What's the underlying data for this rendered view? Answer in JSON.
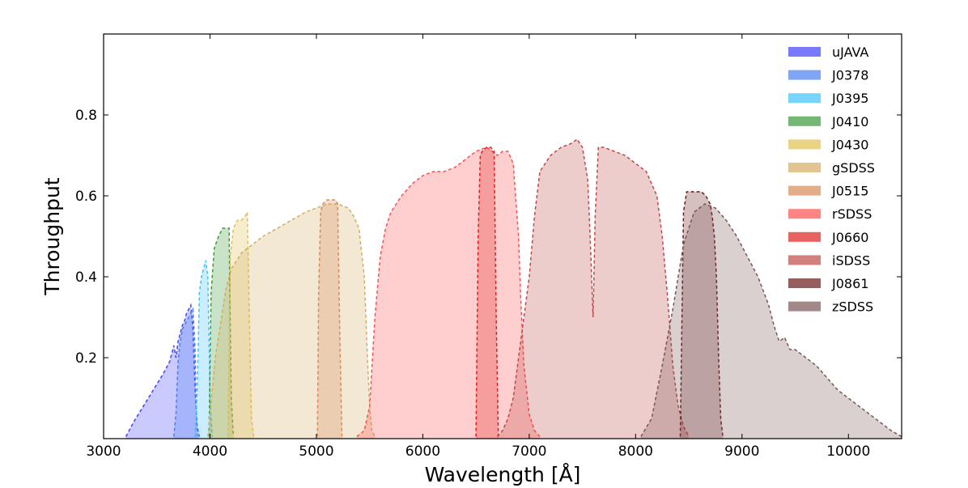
{
  "chart_data": {
    "type": "area",
    "title": "",
    "xlabel": "Wavelength [Å]",
    "ylabel": "Throughput",
    "xlim": [
      3000,
      10500
    ],
    "ylim": [
      0,
      1.0
    ],
    "x_ticks": [
      3000,
      4000,
      5000,
      6000,
      7000,
      8000,
      9000,
      10000
    ],
    "y_ticks": [
      0.2,
      0.4,
      0.6,
      0.8
    ],
    "legend_position": "top-right",
    "grid": false,
    "series": [
      {
        "name": "uJAVA",
        "color": "#4040ff",
        "x": [
          3210,
          3280,
          3350,
          3420,
          3490,
          3560,
          3620,
          3660,
          3680,
          3700,
          3720,
          3740,
          3760,
          3780,
          3800,
          3820,
          3840,
          3860,
          3880,
          3900
        ],
        "y": [
          0.005,
          0.04,
          0.07,
          0.1,
          0.13,
          0.16,
          0.19,
          0.23,
          0.2,
          0.24,
          0.26,
          0.28,
          0.29,
          0.31,
          0.32,
          0.33,
          0.27,
          0.12,
          0.03,
          0.005
        ]
      },
      {
        "name": "J0378",
        "color": "#4a7ff0",
        "x": [
          3660,
          3680,
          3700,
          3720,
          3740,
          3760,
          3780,
          3800,
          3820,
          3840,
          3860,
          3870,
          3880
        ],
        "y": [
          0.005,
          0.06,
          0.19,
          0.24,
          0.27,
          0.28,
          0.29,
          0.3,
          0.31,
          0.32,
          0.22,
          0.08,
          0.005
        ]
      },
      {
        "name": "J0395",
        "color": "#40c0ff",
        "x": [
          3860,
          3880,
          3900,
          3920,
          3940,
          3960,
          3980,
          4000,
          4020
        ],
        "y": [
          0.005,
          0.12,
          0.36,
          0.4,
          0.42,
          0.44,
          0.4,
          0.1,
          0.005
        ]
      },
      {
        "name": "J0410",
        "color": "#3a9a3a",
        "x": [
          3990,
          4010,
          4040,
          4080,
          4120,
          4160,
          4180,
          4190,
          4200,
          4220
        ],
        "y": [
          0.005,
          0.36,
          0.47,
          0.5,
          0.52,
          0.52,
          0.52,
          0.3,
          0.1,
          0.005
        ]
      },
      {
        "name": "J0430",
        "color": "#e0c050",
        "x": [
          4170,
          4190,
          4220,
          4260,
          4300,
          4330,
          4350,
          4370,
          4390,
          4410
        ],
        "y": [
          0.005,
          0.45,
          0.52,
          0.54,
          0.54,
          0.55,
          0.56,
          0.3,
          0.05,
          0.005
        ]
      },
      {
        "name": "gSDSS",
        "color": "#d4ac60",
        "x": [
          3980,
          4050,
          4150,
          4200,
          4300,
          4500,
          4700,
          4900,
          5000,
          5100,
          5200,
          5300,
          5350,
          5400,
          5450,
          5480,
          5500,
          5520,
          5550
        ],
        "y": [
          0.005,
          0.2,
          0.37,
          0.42,
          0.46,
          0.5,
          0.53,
          0.56,
          0.57,
          0.58,
          0.58,
          0.57,
          0.55,
          0.52,
          0.4,
          0.2,
          0.08,
          0.02,
          0.005
        ]
      },
      {
        "name": "J0515",
        "color": "#d88a58",
        "x": [
          5010,
          5020,
          5040,
          5060,
          5100,
          5140,
          5180,
          5200,
          5220,
          5240
        ],
        "y": [
          0.005,
          0.35,
          0.56,
          0.58,
          0.59,
          0.59,
          0.59,
          0.58,
          0.25,
          0.005
        ]
      },
      {
        "name": "rSDSS",
        "color": "#ff5050",
        "x": [
          5380,
          5450,
          5500,
          5550,
          5600,
          5650,
          5700,
          5800,
          5900,
          6000,
          6100,
          6200,
          6300,
          6400,
          6500,
          6600,
          6650,
          6700,
          6750,
          6800,
          6850,
          6900,
          6920,
          6950,
          7000,
          7050,
          7100
        ],
        "y": [
          0.005,
          0.02,
          0.08,
          0.3,
          0.45,
          0.52,
          0.56,
          0.6,
          0.63,
          0.65,
          0.66,
          0.66,
          0.67,
          0.69,
          0.71,
          0.72,
          0.71,
          0.7,
          0.71,
          0.71,
          0.68,
          0.5,
          0.35,
          0.18,
          0.06,
          0.02,
          0.005
        ]
      },
      {
        "name": "J0660",
        "color": "#e02020",
        "x": [
          6500,
          6520,
          6540,
          6560,
          6600,
          6640,
          6670,
          6690,
          6710
        ],
        "y": [
          0.005,
          0.5,
          0.7,
          0.71,
          0.72,
          0.72,
          0.71,
          0.3,
          0.005
        ]
      },
      {
        "name": "iSDSS",
        "color": "#c04848",
        "x": [
          6700,
          6750,
          6800,
          6850,
          6900,
          6950,
          7000,
          7050,
          7100,
          7200,
          7300,
          7400,
          7450,
          7500,
          7550,
          7580,
          7600,
          7620,
          7650,
          7700,
          7800,
          7900,
          8000,
          8100,
          8200,
          8250,
          8300,
          8350,
          8400,
          8450,
          8500
        ],
        "y": [
          0.005,
          0.02,
          0.05,
          0.1,
          0.2,
          0.3,
          0.4,
          0.55,
          0.66,
          0.7,
          0.72,
          0.73,
          0.74,
          0.72,
          0.64,
          0.45,
          0.3,
          0.55,
          0.72,
          0.72,
          0.71,
          0.7,
          0.68,
          0.66,
          0.6,
          0.5,
          0.35,
          0.18,
          0.08,
          0.03,
          0.005
        ]
      },
      {
        "name": "J0861",
        "color": "#6a1a1a",
        "x": [
          8420,
          8430,
          8450,
          8480,
          8550,
          8620,
          8660,
          8700,
          8720,
          8740,
          8760,
          8780,
          8800,
          8820
        ],
        "y": [
          0.005,
          0.2,
          0.56,
          0.61,
          0.61,
          0.61,
          0.6,
          0.58,
          0.55,
          0.5,
          0.4,
          0.2,
          0.05,
          0.005
        ]
      },
      {
        "name": "zSDSS",
        "color": "#7a5656",
        "x": [
          8050,
          8150,
          8250,
          8350,
          8450,
          8550,
          8650,
          8750,
          8850,
          8950,
          9050,
          9150,
          9250,
          9300,
          9350,
          9400,
          9450,
          9500,
          9600,
          9700,
          9800,
          9900,
          10000,
          10100,
          10200,
          10300,
          10400,
          10500
        ],
        "y": [
          0.005,
          0.05,
          0.18,
          0.32,
          0.48,
          0.56,
          0.58,
          0.57,
          0.54,
          0.5,
          0.45,
          0.4,
          0.33,
          0.28,
          0.24,
          0.25,
          0.22,
          0.22,
          0.2,
          0.18,
          0.15,
          0.12,
          0.1,
          0.08,
          0.06,
          0.04,
          0.02,
          0.005
        ]
      }
    ]
  }
}
